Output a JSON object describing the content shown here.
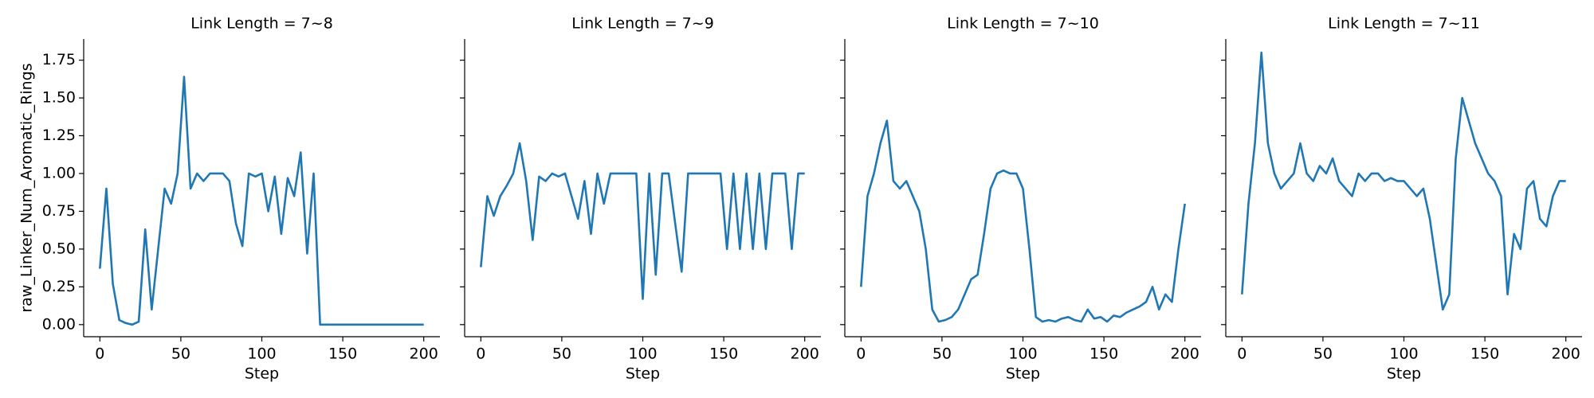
{
  "chart_data": [
    {
      "type": "line",
      "title": "Link Length = 7~8",
      "ylabel": "raw_Linker_Num_Aromatic_Rings",
      "xlabel": "Step",
      "color": "#1f77b4",
      "x": [
        0,
        4,
        8,
        12,
        16,
        20,
        24,
        28,
        32,
        36,
        40,
        44,
        48,
        52,
        56,
        60,
        64,
        68,
        72,
        76,
        80,
        84,
        88,
        92,
        96,
        100,
        104,
        108,
        112,
        116,
        120,
        124,
        128,
        132,
        136,
        140,
        144,
        148,
        152,
        156,
        160,
        164,
        168,
        172,
        176,
        180,
        184,
        188,
        192,
        196,
        200
      ],
      "values": [
        0.37,
        0.9,
        0.27,
        0.03,
        0.01,
        0.0,
        0.02,
        0.63,
        0.1,
        0.5,
        0.9,
        0.8,
        1.0,
        1.64,
        0.9,
        1.0,
        0.95,
        1.0,
        1.0,
        1.0,
        0.95,
        0.67,
        0.52,
        1.0,
        0.98,
        1.0,
        0.75,
        0.98,
        0.6,
        0.97,
        0.85,
        1.14,
        0.47,
        1.0,
        0,
        0,
        0,
        0,
        0,
        0,
        0,
        0,
        0,
        0,
        0,
        0,
        0,
        0,
        0,
        0,
        0
      ],
      "xlim": [
        -10,
        210
      ],
      "xticks": [
        0,
        50,
        100,
        150,
        200
      ],
      "ylim": [
        -0.08,
        1.89
      ],
      "yticks": [
        {
          "value": 0,
          "label": "0.00"
        },
        {
          "value": 0.25,
          "label": "0.25"
        },
        {
          "value": 0.5,
          "label": "0.50"
        },
        {
          "value": 0.75,
          "label": "0.75"
        },
        {
          "value": 1,
          "label": "1.00"
        },
        {
          "value": 1.25,
          "label": "1.25"
        },
        {
          "value": 1.5,
          "label": "1.50"
        },
        {
          "value": 1.75,
          "label": "1.75"
        }
      ]
    },
    {
      "type": "line",
      "title": "Link Length = 7~9",
      "xlabel": "Step",
      "color": "#1f77b4",
      "x": [
        0,
        4,
        8,
        12,
        16,
        20,
        24,
        28,
        32,
        36,
        40,
        44,
        48,
        52,
        56,
        60,
        64,
        68,
        72,
        76,
        80,
        84,
        88,
        92,
        96,
        100,
        104,
        108,
        112,
        116,
        120,
        124,
        128,
        132,
        136,
        140,
        144,
        148,
        152,
        156,
        160,
        164,
        168,
        172,
        176,
        180,
        184,
        188,
        192,
        196,
        200
      ],
      "values": [
        0.38,
        0.85,
        0.72,
        0.85,
        0.92,
        1.0,
        1.2,
        0.95,
        0.56,
        0.98,
        0.95,
        1.0,
        0.98,
        1.0,
        0.85,
        0.7,
        0.95,
        0.6,
        1.0,
        0.8,
        1.0,
        1.0,
        1.0,
        1.0,
        1.0,
        0.17,
        1.0,
        0.33,
        1.0,
        1.0,
        0.67,
        0.35,
        1.0,
        1.0,
        1.0,
        1.0,
        1.0,
        1.0,
        0.5,
        1.0,
        0.5,
        1.0,
        0.5,
        1.0,
        0.5,
        1.0,
        1.0,
        1.0,
        0.5,
        1.0,
        1.0
      ],
      "xlim": [
        -10,
        210
      ],
      "xticks": [
        0,
        50,
        100,
        150,
        200
      ]
    },
    {
      "type": "line",
      "title": "Link Length = 7~10",
      "xlabel": "Step",
      "color": "#1f77b4",
      "x": [
        0,
        4,
        8,
        12,
        16,
        20,
        24,
        28,
        32,
        36,
        40,
        44,
        48,
        52,
        56,
        60,
        64,
        68,
        72,
        76,
        80,
        84,
        88,
        92,
        96,
        100,
        104,
        108,
        112,
        116,
        120,
        124,
        128,
        132,
        136,
        140,
        144,
        148,
        152,
        156,
        160,
        164,
        168,
        172,
        176,
        180,
        184,
        188,
        192,
        196,
        200
      ],
      "values": [
        0.25,
        0.85,
        1.0,
        1.2,
        1.35,
        0.95,
        0.9,
        0.95,
        0.85,
        0.75,
        0.5,
        0.1,
        0.02,
        0.03,
        0.05,
        0.1,
        0.2,
        0.3,
        0.33,
        0.6,
        0.9,
        1.0,
        1.02,
        1.0,
        1.0,
        0.9,
        0.5,
        0.05,
        0.02,
        0.03,
        0.02,
        0.04,
        0.05,
        0.03,
        0.02,
        0.1,
        0.04,
        0.05,
        0.02,
        0.06,
        0.05,
        0.08,
        0.1,
        0.12,
        0.15,
        0.25,
        0.1,
        0.2,
        0.15,
        0.5,
        0.8
      ],
      "xlim": [
        -10,
        210
      ],
      "xticks": [
        0,
        50,
        100,
        150,
        200
      ]
    },
    {
      "type": "line",
      "title": "Link Length = 7~11",
      "xlabel": "Step",
      "color": "#1f77b4",
      "x": [
        0,
        4,
        8,
        12,
        16,
        20,
        24,
        28,
        32,
        36,
        40,
        44,
        48,
        52,
        56,
        60,
        64,
        68,
        72,
        76,
        80,
        84,
        88,
        92,
        96,
        100,
        104,
        108,
        112,
        116,
        120,
        124,
        128,
        132,
        136,
        140,
        144,
        148,
        152,
        156,
        160,
        164,
        168,
        172,
        176,
        180,
        184,
        188,
        192,
        196,
        200
      ],
      "values": [
        0.2,
        0.8,
        1.2,
        1.8,
        1.2,
        1.0,
        0.9,
        0.95,
        1.0,
        1.2,
        1.0,
        0.95,
        1.05,
        1.0,
        1.1,
        0.95,
        0.9,
        0.85,
        1.0,
        0.95,
        1.0,
        1.0,
        0.95,
        0.97,
        0.95,
        0.95,
        0.9,
        0.85,
        0.9,
        0.7,
        0.4,
        0.1,
        0.2,
        1.1,
        1.5,
        1.35,
        1.2,
        1.1,
        1.0,
        0.95,
        0.85,
        0.2,
        0.6,
        0.5,
        0.9,
        0.95,
        0.7,
        0.65,
        0.85,
        0.95,
        0.95
      ],
      "xlim": [
        -10,
        210
      ],
      "xticks": [
        0,
        50,
        100,
        150,
        200
      ]
    }
  ]
}
